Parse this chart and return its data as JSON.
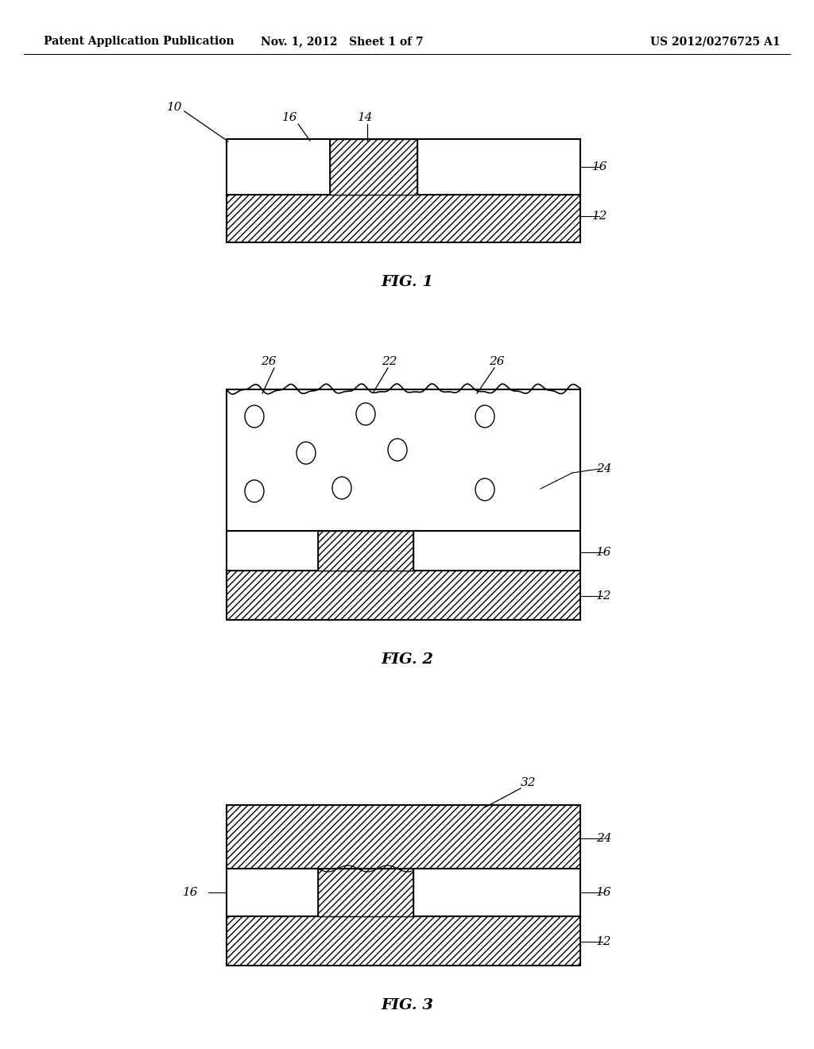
{
  "header_left": "Patent Application Publication",
  "header_mid": "Nov. 1, 2012   Sheet 1 of 7",
  "header_right": "US 2012/0276725 A1",
  "bg_color": "#ffffff",
  "fig1": {
    "label": "FIG. 1",
    "ref_10": "10",
    "ref_12": "12",
    "ref_14": "14",
    "ref_16_top": "16",
    "ref_16_side": "16"
  },
  "fig2": {
    "label": "FIG. 2",
    "ref_12": "12",
    "ref_16": "16",
    "ref_22": "22",
    "ref_24": "24",
    "ref_26_left": "26",
    "ref_26_right": "26"
  },
  "fig3": {
    "label": "FIG. 3",
    "ref_12": "12",
    "ref_16_left": "16",
    "ref_16_right": "16",
    "ref_24": "24",
    "ref_32": "32"
  }
}
